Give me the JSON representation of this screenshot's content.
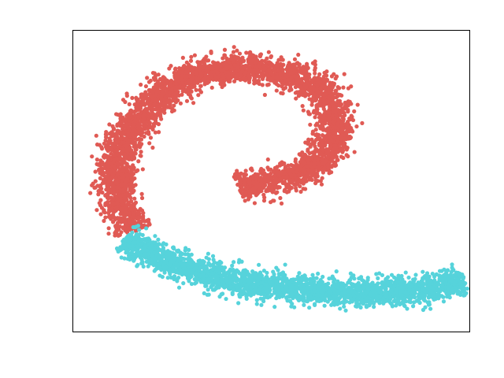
{
  "chart_data": {
    "type": "scatter",
    "title": "",
    "xlabel": "",
    "ylabel": "",
    "xlim": [
      -1.0,
      1.0
    ],
    "ylim": [
      -1.0,
      1.0
    ],
    "grid": false,
    "legend": "none",
    "axes_ticks": "hidden",
    "series": [
      {
        "color": "#e05a54",
        "points_per_segment_approx": 1,
        "spine": [
          [
            -0.17,
            -0.04
          ],
          [
            0.02,
            0.0
          ],
          [
            0.22,
            0.09
          ],
          [
            0.33,
            0.27
          ],
          [
            0.3,
            0.53
          ],
          [
            0.19,
            0.66
          ],
          [
            0.0,
            0.74
          ],
          [
            -0.25,
            0.76
          ],
          [
            -0.48,
            0.66
          ],
          [
            -0.65,
            0.45
          ],
          [
            -0.78,
            0.18
          ],
          [
            -0.78,
            -0.1
          ],
          [
            -0.69,
            -0.33
          ]
        ],
        "band_half_width": 0.085,
        "approx_points": 4000
      },
      {
        "color": "#56d3db",
        "spine": [
          [
            -0.74,
            -0.39
          ],
          [
            -0.57,
            -0.49
          ],
          [
            -0.38,
            -0.6
          ],
          [
            -0.16,
            -0.67
          ],
          [
            0.08,
            -0.71
          ],
          [
            0.32,
            -0.74
          ],
          [
            0.57,
            -0.74
          ],
          [
            0.8,
            -0.71
          ],
          [
            0.97,
            -0.66
          ]
        ],
        "band_half_width": 0.085,
        "approx_points": 2500
      }
    ]
  }
}
